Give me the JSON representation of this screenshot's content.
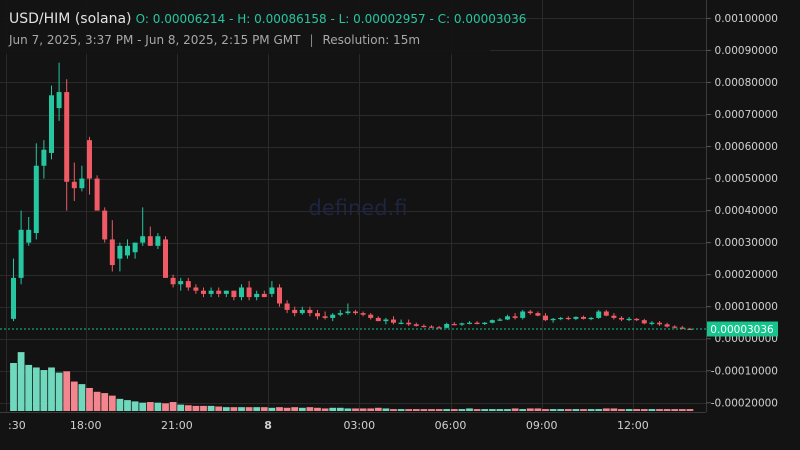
{
  "header": {
    "pair": "USD/HIM (solana)",
    "ohlc_text": "O: 0.00006214 - H: 0.00086158 - L: 0.00002957 - C: 0.00003036",
    "range": "Jun 7, 2025, 3:37 PM - Jun 8, 2025, 2:15 PM GMT",
    "separator": "|",
    "resolution": "Resolution: 15m"
  },
  "watermark": "defined.fi",
  "colors": {
    "background": "#131313",
    "grid": "#2a2a2a",
    "up": "#26c6a0",
    "down": "#ef5a64",
    "up_volume": "#6fd8bd",
    "down_volume": "#f2858d",
    "last_price_label_bg": "#16c48d",
    "axis_text": "#d0d0d0"
  },
  "chart_data": {
    "type": "candlestick",
    "resolution": "15m",
    "y_axis": {
      "ticks": [
        0.001,
        0.0009,
        0.0008,
        0.0007,
        0.0006,
        0.0005,
        0.0004,
        0.0003,
        0.0002,
        0.0001,
        0.0,
        -0.0001,
        -0.0002
      ],
      "tick_labels": [
        "0.00100000",
        "0.00090000",
        "0.00080000",
        "0.00070000",
        "0.00060000",
        "0.00050000",
        "0.00040000",
        "0.00030000",
        "0.00020000",
        "0.00010000",
        "0.00000000",
        "-0.00010000",
        "-0.00020000"
      ],
      "range": [
        -0.00021,
        0.00102
      ],
      "position": "right"
    },
    "x_axis": {
      "tick_labels": [
        ":30",
        "18:00",
        "21:00",
        "8",
        "03:00",
        "06:00",
        "09:00",
        "12:00"
      ],
      "tick_bar_index": [
        -1,
        9.5,
        21.5,
        33.5,
        45.5,
        57.5,
        69.5,
        81.5
      ]
    },
    "grid": true,
    "last_price": 3.036e-05,
    "last_price_label": "0.00003036",
    "candles": [
      {
        "o": 6.2e-05,
        "h": 0.00025,
        "l": 5.5e-05,
        "c": 0.00019
      },
      {
        "o": 0.00019,
        "h": 0.0004,
        "l": 0.00017,
        "c": 0.00034
      },
      {
        "o": 0.0003,
        "h": 0.00038,
        "l": 0.00029,
        "c": 0.00034
      },
      {
        "o": 0.00033,
        "h": 0.00061,
        "l": 0.00031,
        "c": 0.00054
      },
      {
        "o": 0.00054,
        "h": 0.00062,
        "l": 0.0005,
        "c": 0.00059
      },
      {
        "o": 0.00058,
        "h": 0.00079,
        "l": 0.00056,
        "c": 0.00076
      },
      {
        "o": 0.00072,
        "h": 0.000862,
        "l": 0.00068,
        "c": 0.00077
      },
      {
        "o": 0.00077,
        "h": 0.00081,
        "l": 0.0004,
        "c": 0.00049
      },
      {
        "o": 0.00049,
        "h": 0.00055,
        "l": 0.00043,
        "c": 0.00047
      },
      {
        "o": 0.00047,
        "h": 0.00054,
        "l": 0.00046,
        "c": 0.0005
      },
      {
        "o": 0.00062,
        "h": 0.00063,
        "l": 0.00045,
        "c": 0.0005
      },
      {
        "o": 0.0005,
        "h": 0.00051,
        "l": 0.00041,
        "c": 0.0004
      },
      {
        "o": 0.0004,
        "h": 0.00041,
        "l": 0.0003,
        "c": 0.00031
      },
      {
        "o": 0.00031,
        "h": 0.00037,
        "l": 0.00021,
        "c": 0.00023
      },
      {
        "o": 0.00025,
        "h": 0.0003,
        "l": 0.00021,
        "c": 0.00029
      },
      {
        "o": 0.00026,
        "h": 0.00031,
        "l": 0.00025,
        "c": 0.00029
      },
      {
        "o": 0.00027,
        "h": 0.0003,
        "l": 0.00025,
        "c": 0.0003
      },
      {
        "o": 0.0003,
        "h": 0.00041,
        "l": 0.00029,
        "c": 0.00032
      },
      {
        "o": 0.00032,
        "h": 0.00035,
        "l": 0.00029,
        "c": 0.00029
      },
      {
        "o": 0.00029,
        "h": 0.00033,
        "l": 0.00028,
        "c": 0.00032
      },
      {
        "o": 0.00031,
        "h": 0.00032,
        "l": 0.00019,
        "c": 0.00019
      },
      {
        "o": 0.00019,
        "h": 0.0002,
        "l": 0.00016,
        "c": 0.00017
      },
      {
        "o": 0.00017,
        "h": 0.00019,
        "l": 0.00015,
        "c": 0.00018
      },
      {
        "o": 0.00018,
        "h": 0.00019,
        "l": 0.00015,
        "c": 0.00016
      },
      {
        "o": 0.00016,
        "h": 0.00017,
        "l": 0.00014,
        "c": 0.00015
      },
      {
        "o": 0.00015,
        "h": 0.00016,
        "l": 0.00013,
        "c": 0.00014
      },
      {
        "o": 0.00014,
        "h": 0.00016,
        "l": 0.00013,
        "c": 0.00015
      },
      {
        "o": 0.00015,
        "h": 0.00016,
        "l": 0.00013,
        "c": 0.00014
      },
      {
        "o": 0.00014,
        "h": 0.00015,
        "l": 0.00013,
        "c": 0.00015
      },
      {
        "o": 0.00015,
        "h": 0.00015,
        "l": 0.00012,
        "c": 0.00013
      },
      {
        "o": 0.00013,
        "h": 0.00017,
        "l": 0.00012,
        "c": 0.00016
      },
      {
        "o": 0.00016,
        "h": 0.00018,
        "l": 0.00012,
        "c": 0.00013
      },
      {
        "o": 0.00013,
        "h": 0.00015,
        "l": 0.00012,
        "c": 0.00014
      },
      {
        "o": 0.00014,
        "h": 0.00015,
        "l": 0.00013,
        "c": 0.00013
      },
      {
        "o": 0.00014,
        "h": 0.00018,
        "l": 0.00013,
        "c": 0.00016
      },
      {
        "o": 0.00016,
        "h": 0.00017,
        "l": 0.0001,
        "c": 0.00011
      },
      {
        "o": 0.00011,
        "h": 0.00012,
        "l": 8e-05,
        "c": 9e-05
      },
      {
        "o": 9e-05,
        "h": 0.0001,
        "l": 7e-05,
        "c": 8e-05
      },
      {
        "o": 8e-05,
        "h": 0.0001,
        "l": 7.5e-05,
        "c": 9e-05
      },
      {
        "o": 9e-05,
        "h": 0.0001,
        "l": 7e-05,
        "c": 8e-05
      },
      {
        "o": 8e-05,
        "h": 9e-05,
        "l": 6e-05,
        "c": 7e-05
      },
      {
        "o": 7e-05,
        "h": 8.5e-05,
        "l": 6e-05,
        "c": 6.5e-05
      },
      {
        "o": 6.5e-05,
        "h": 8e-05,
        "l": 5.5e-05,
        "c": 7.5e-05
      },
      {
        "o": 7.5e-05,
        "h": 9e-05,
        "l": 7e-05,
        "c": 8e-05
      },
      {
        "o": 8e-05,
        "h": 0.00011,
        "l": 7.5e-05,
        "c": 8.5e-05
      },
      {
        "o": 8.5e-05,
        "h": 9e-05,
        "l": 7.5e-05,
        "c": 8e-05
      },
      {
        "o": 8e-05,
        "h": 8.5e-05,
        "l": 7e-05,
        "c": 7.5e-05
      },
      {
        "o": 7.5e-05,
        "h": 8e-05,
        "l": 6e-05,
        "c": 6.5e-05
      },
      {
        "o": 6.5e-05,
        "h": 7e-05,
        "l": 5.5e-05,
        "c": 5.5e-05
      },
      {
        "o": 5.5e-05,
        "h": 6.5e-05,
        "l": 4.5e-05,
        "c": 6e-05
      },
      {
        "o": 6e-05,
        "h": 7e-05,
        "l": 4.5e-05,
        "c": 5e-05
      },
      {
        "o": 5e-05,
        "h": 6e-05,
        "l": 4.5e-05,
        "c": 5e-05
      },
      {
        "o": 5e-05,
        "h": 6e-05,
        "l": 4e-05,
        "c": 4.5e-05
      },
      {
        "o": 4.5e-05,
        "h": 5e-05,
        "l": 3.8e-05,
        "c": 4e-05
      },
      {
        "o": 4e-05,
        "h": 4.5e-05,
        "l": 3.5e-05,
        "c": 3.8e-05
      },
      {
        "o": 3.8e-05,
        "h": 4.2e-05,
        "l": 3.3e-05,
        "c": 3.6e-05
      },
      {
        "o": 3.6e-05,
        "h": 4e-05,
        "l": 3.2e-05,
        "c": 3.4e-05
      },
      {
        "o": 3.4e-05,
        "h": 5e-05,
        "l": 3.2e-05,
        "c": 4.6e-05
      },
      {
        "o": 4.6e-05,
        "h": 5.2e-05,
        "l": 4.2e-05,
        "c": 4.4e-05
      },
      {
        "o": 4.4e-05,
        "h": 5e-05,
        "l": 4e-05,
        "c": 4.8e-05
      },
      {
        "o": 4.8e-05,
        "h": 5.5e-05,
        "l": 4.5e-05,
        "c": 5e-05
      },
      {
        "o": 5e-05,
        "h": 5.5e-05,
        "l": 4.5e-05,
        "c": 4.6e-05
      },
      {
        "o": 4.6e-05,
        "h": 5.2e-05,
        "l": 4.3e-05,
        "c": 5e-05
      },
      {
        "o": 5e-05,
        "h": 6e-05,
        "l": 4.8e-05,
        "c": 5.8e-05
      },
      {
        "o": 5.8e-05,
        "h": 6.5e-05,
        "l": 5.5e-05,
        "c": 6e-05
      },
      {
        "o": 6e-05,
        "h": 7.5e-05,
        "l": 5.8e-05,
        "c": 7e-05
      },
      {
        "o": 7e-05,
        "h": 8e-05,
        "l": 6e-05,
        "c": 6.5e-05
      },
      {
        "o": 6.5e-05,
        "h": 9e-05,
        "l": 6e-05,
        "c": 8.5e-05
      },
      {
        "o": 8.5e-05,
        "h": 9e-05,
        "l": 7.5e-05,
        "c": 8e-05
      },
      {
        "o": 8e-05,
        "h": 8.5e-05,
        "l": 7e-05,
        "c": 7.2e-05
      },
      {
        "o": 7.2e-05,
        "h": 8e-05,
        "l": 5.5e-05,
        "c": 5.8e-05
      },
      {
        "o": 5.8e-05,
        "h": 6.5e-05,
        "l": 5e-05,
        "c": 6.2e-05
      },
      {
        "o": 6.2e-05,
        "h": 6.8e-05,
        "l": 5.8e-05,
        "c": 6.5e-05
      },
      {
        "o": 6.5e-05,
        "h": 7e-05,
        "l": 5.8e-05,
        "c": 6.2e-05
      },
      {
        "o": 6.2e-05,
        "h": 7e-05,
        "l": 5.8e-05,
        "c": 6.8e-05
      },
      {
        "o": 6.8e-05,
        "h": 7.2e-05,
        "l": 6e-05,
        "c": 6.2e-05
      },
      {
        "o": 6.2e-05,
        "h": 6.8e-05,
        "l": 5.8e-05,
        "c": 6.5e-05
      },
      {
        "o": 6.5e-05,
        "h": 9e-05,
        "l": 6.2e-05,
        "c": 8.5e-05
      },
      {
        "o": 8.5e-05,
        "h": 9e-05,
        "l": 7e-05,
        "c": 7.2e-05
      },
      {
        "o": 7.2e-05,
        "h": 8e-05,
        "l": 6e-05,
        "c": 6.5e-05
      },
      {
        "o": 6.5e-05,
        "h": 7e-05,
        "l": 5.5e-05,
        "c": 6e-05
      },
      {
        "o": 6e-05,
        "h": 6.8e-05,
        "l": 5.5e-05,
        "c": 6.2e-05
      },
      {
        "o": 6.2e-05,
        "h": 6.5e-05,
        "l": 5.5e-05,
        "c": 5.8e-05
      },
      {
        "o": 5.8e-05,
        "h": 6.2e-05,
        "l": 4.5e-05,
        "c": 4.8e-05
      },
      {
        "o": 4.8e-05,
        "h": 5.5e-05,
        "l": 4.2e-05,
        "c": 5e-05
      },
      {
        "o": 5e-05,
        "h": 5.5e-05,
        "l": 4e-05,
        "c": 4.5e-05
      },
      {
        "o": 4.5e-05,
        "h": 5e-05,
        "l": 3.5e-05,
        "c": 3.8e-05
      },
      {
        "o": 3.8e-05,
        "h": 4.2e-05,
        "l": 3.2e-05,
        "c": 3.5e-05
      },
      {
        "o": 3.5e-05,
        "h": 4e-05,
        "l": 3e-05,
        "c": 3.1e-05
      },
      {
        "o": 3.1e-05,
        "h": 3.4e-05,
        "l": 2.9e-05,
        "c": 3e-05
      }
    ],
    "volume": [
      0.75,
      0.92,
      0.72,
      0.68,
      0.64,
      0.68,
      0.6,
      0.62,
      0.46,
      0.42,
      0.36,
      0.3,
      0.28,
      0.24,
      0.19,
      0.17,
      0.15,
      0.13,
      0.14,
      0.13,
      0.12,
      0.14,
      0.1,
      0.09,
      0.08,
      0.08,
      0.08,
      0.07,
      0.06,
      0.06,
      0.06,
      0.06,
      0.06,
      0.06,
      0.05,
      0.06,
      0.05,
      0.06,
      0.05,
      0.06,
      0.05,
      0.04,
      0.05,
      0.05,
      0.04,
      0.04,
      0.04,
      0.04,
      0.05,
      0.04,
      0.03,
      0.03,
      0.03,
      0.03,
      0.03,
      0.03,
      0.03,
      0.03,
      0.03,
      0.03,
      0.04,
      0.03,
      0.03,
      0.03,
      0.03,
      0.03,
      0.04,
      0.03,
      0.04,
      0.04,
      0.03,
      0.03,
      0.03,
      0.03,
      0.03,
      0.03,
      0.03,
      0.03,
      0.04,
      0.04,
      0.03,
      0.03,
      0.03,
      0.03,
      0.03,
      0.03,
      0.03,
      0.03,
      0.03,
      0.03
    ]
  }
}
